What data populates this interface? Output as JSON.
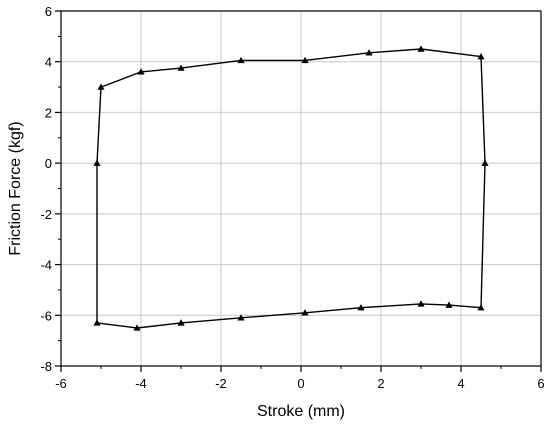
{
  "chart_data": {
    "type": "line",
    "title": "",
    "xlabel": "Stroke (mm)",
    "ylabel": "Friction Force (kgf)",
    "xlim": [
      -6,
      6
    ],
    "ylim": [
      -8,
      6
    ],
    "xticks": [
      -6,
      -4,
      -2,
      0,
      2,
      4,
      6
    ],
    "yticks": [
      -8,
      -6,
      -4,
      -2,
      0,
      2,
      4,
      6
    ],
    "xtick_labels": [
      "-6",
      "-4",
      "-2",
      "0",
      "2",
      "4",
      "6"
    ],
    "ytick_labels": [
      "-8",
      "-6",
      "-4",
      "-2",
      "0",
      "2",
      "4",
      "6"
    ],
    "grid": true,
    "legend": "none",
    "marker": "triangle",
    "series": [
      {
        "color": "#000000",
        "closed": true,
        "points": [
          {
            "x": -5.1,
            "y": 0.0
          },
          {
            "x": -5.0,
            "y": 3.0
          },
          {
            "x": -4.0,
            "y": 3.6
          },
          {
            "x": -3.0,
            "y": 3.75
          },
          {
            "x": -1.5,
            "y": 4.05
          },
          {
            "x": 0.1,
            "y": 4.05
          },
          {
            "x": 1.7,
            "y": 4.35
          },
          {
            "x": 3.0,
            "y": 4.5
          },
          {
            "x": 4.5,
            "y": 4.2
          },
          {
            "x": 4.6,
            "y": 0.0
          },
          {
            "x": 4.5,
            "y": -5.7
          },
          {
            "x": 3.7,
            "y": -5.6
          },
          {
            "x": 3.0,
            "y": -5.55
          },
          {
            "x": 1.5,
            "y": -5.7
          },
          {
            "x": 0.1,
            "y": -5.9
          },
          {
            "x": -1.5,
            "y": -6.1
          },
          {
            "x": -3.0,
            "y": -6.3
          },
          {
            "x": -4.1,
            "y": -6.5
          },
          {
            "x": -5.1,
            "y": -6.3
          }
        ]
      }
    ]
  }
}
